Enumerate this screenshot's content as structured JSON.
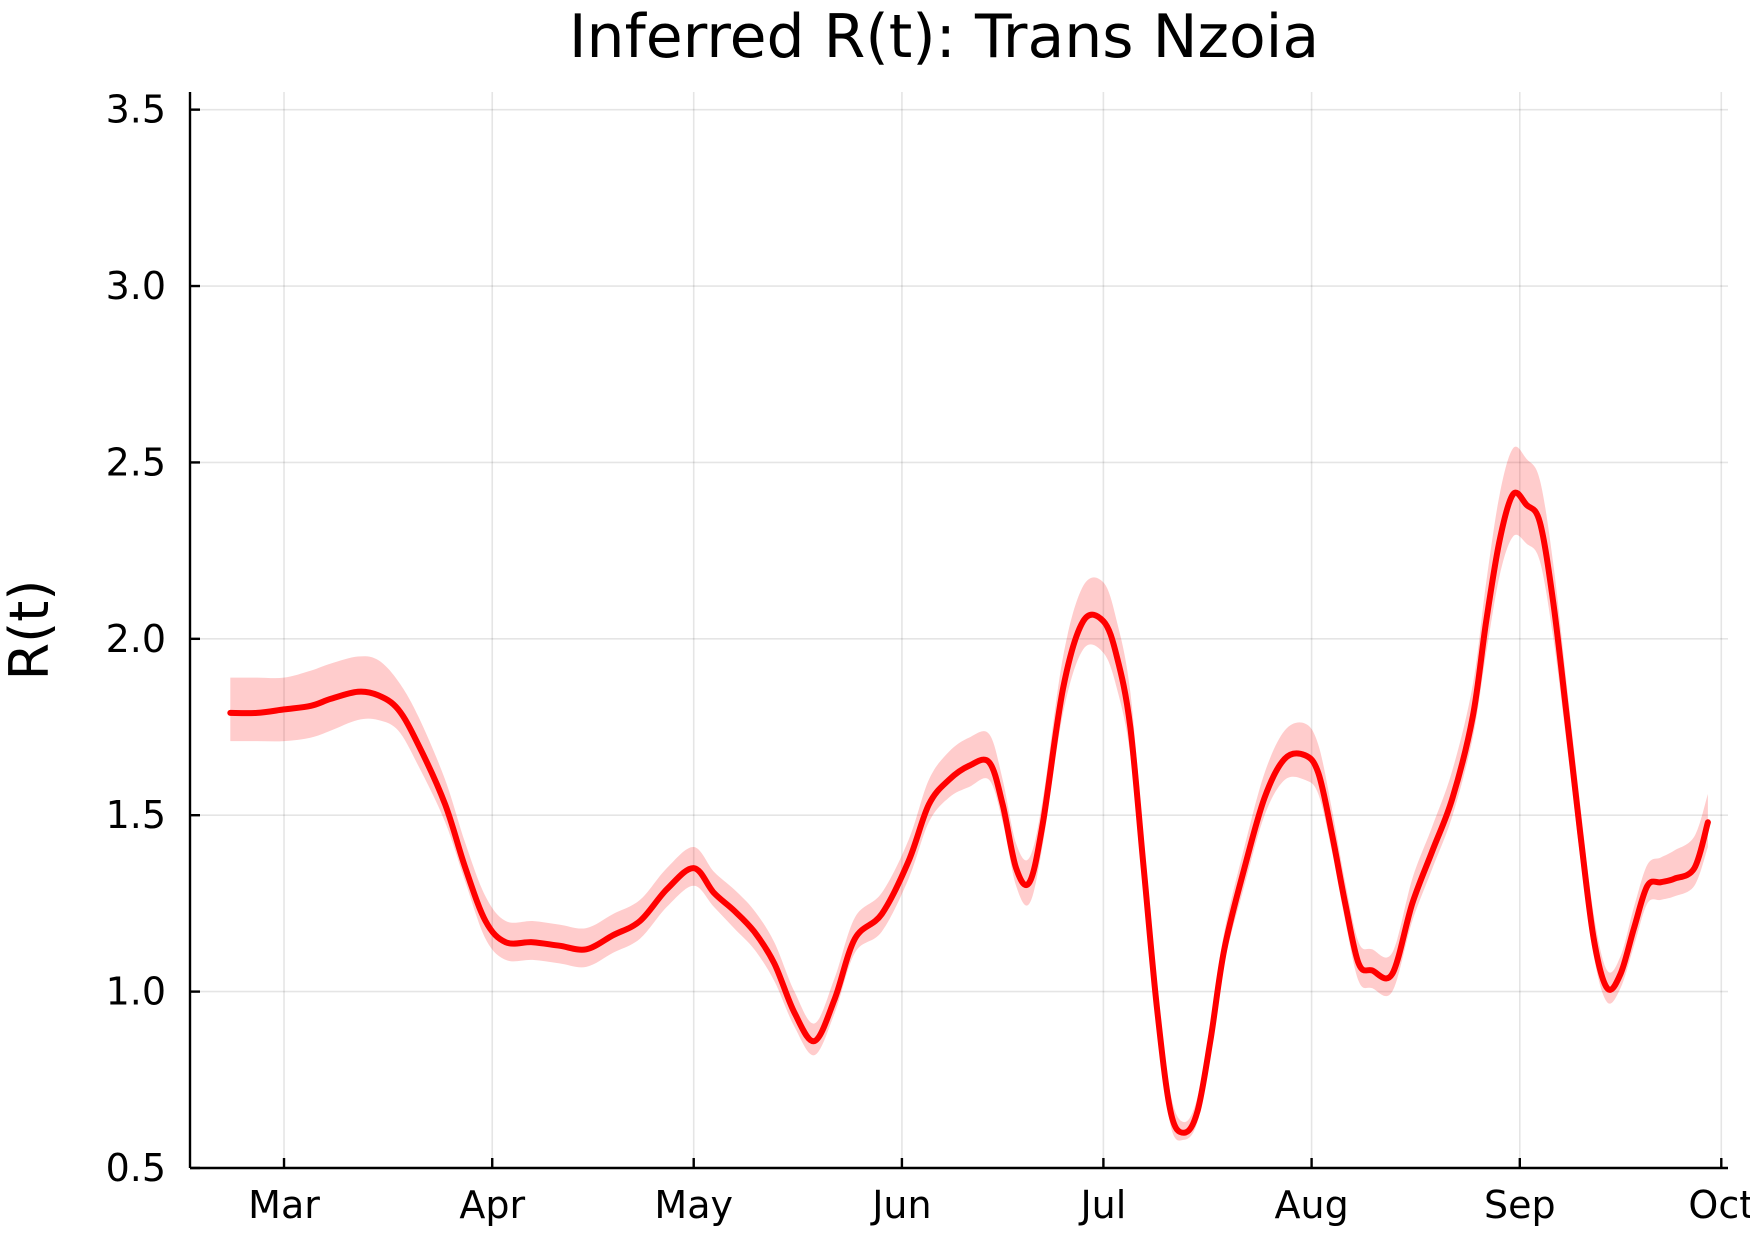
{
  "chart_data": {
    "type": "line",
    "title": "Inferred R(t): Trans Nzoia",
    "xlabel": "",
    "ylabel": "R(t)",
    "ylim": [
      0.5,
      3.55
    ],
    "yticks": [
      "0.5",
      "1.0",
      "1.5",
      "2.0",
      "2.5",
      "3.0",
      "3.5"
    ],
    "xlim": [
      "2020-02-16",
      "2020-10-02"
    ],
    "xticks": [
      {
        "date": "2020-03-01",
        "label": "Mar"
      },
      {
        "date": "2020-04-01",
        "label": "Apr"
      },
      {
        "date": "2020-05-01",
        "label": "May"
      },
      {
        "date": "2020-06-01",
        "label": "Jun"
      },
      {
        "date": "2020-07-01",
        "label": "Jul"
      },
      {
        "date": "2020-08-01",
        "label": "Aug"
      },
      {
        "date": "2020-09-01",
        "label": "Sep"
      },
      {
        "date": "2020-10-01",
        "label": "Oct"
      }
    ],
    "grid": true,
    "legend": "none",
    "colors": {
      "line": "#ff0000",
      "band": "#ff0000"
    },
    "series": [
      {
        "x": [
          "2020-02-22",
          "2020-02-26",
          "2020-03-01",
          "2020-03-05",
          "2020-03-08",
          "2020-03-12",
          "2020-03-15",
          "2020-03-18",
          "2020-03-21",
          "2020-03-25",
          "2020-03-28",
          "2020-03-31",
          "2020-04-03",
          "2020-04-07",
          "2020-04-11",
          "2020-04-15",
          "2020-04-19",
          "2020-04-23",
          "2020-04-27",
          "2020-05-01",
          "2020-05-04",
          "2020-05-07",
          "2020-05-10",
          "2020-05-13",
          "2020-05-16",
          "2020-05-19",
          "2020-05-22",
          "2020-05-25",
          "2020-05-29",
          "2020-06-02",
          "2020-06-05",
          "2020-06-08",
          "2020-06-11",
          "2020-06-14",
          "2020-06-16",
          "2020-06-18",
          "2020-06-20",
          "2020-06-22",
          "2020-06-25",
          "2020-06-28",
          "2020-07-01",
          "2020-07-03",
          "2020-07-05",
          "2020-07-07",
          "2020-07-09",
          "2020-07-11",
          "2020-07-13",
          "2020-07-15",
          "2020-07-17",
          "2020-07-19",
          "2020-07-22",
          "2020-07-25",
          "2020-07-28",
          "2020-07-31",
          "2020-08-02",
          "2020-08-04",
          "2020-08-06",
          "2020-08-08",
          "2020-08-10",
          "2020-08-13",
          "2020-08-16",
          "2020-08-19",
          "2020-08-22",
          "2020-08-25",
          "2020-08-27",
          "2020-08-29",
          "2020-08-31",
          "2020-09-02",
          "2020-09-04",
          "2020-09-06",
          "2020-09-08",
          "2020-09-10",
          "2020-09-12",
          "2020-09-14",
          "2020-09-16",
          "2020-09-18",
          "2020-09-20",
          "2020-09-22",
          "2020-09-24",
          "2020-09-27",
          "2020-09-29"
        ],
        "y": [
          1.79,
          1.79,
          1.8,
          1.81,
          1.83,
          1.85,
          1.84,
          1.8,
          1.7,
          1.53,
          1.35,
          1.2,
          1.14,
          1.14,
          1.13,
          1.12,
          1.16,
          1.2,
          1.29,
          1.35,
          1.28,
          1.23,
          1.17,
          1.08,
          0.94,
          0.86,
          0.98,
          1.15,
          1.22,
          1.37,
          1.53,
          1.6,
          1.64,
          1.65,
          1.53,
          1.35,
          1.31,
          1.48,
          1.86,
          2.05,
          2.05,
          1.95,
          1.75,
          1.35,
          0.95,
          0.66,
          0.6,
          0.66,
          0.87,
          1.12,
          1.35,
          1.55,
          1.66,
          1.67,
          1.62,
          1.45,
          1.25,
          1.08,
          1.06,
          1.05,
          1.25,
          1.4,
          1.55,
          1.78,
          2.05,
          2.28,
          2.41,
          2.38,
          2.33,
          2.1,
          1.78,
          1.45,
          1.15,
          1.01,
          1.05,
          1.18,
          1.3,
          1.31,
          1.32,
          1.35,
          1.48
        ],
        "lower": [
          1.71,
          1.71,
          1.71,
          1.72,
          1.74,
          1.77,
          1.77,
          1.74,
          1.64,
          1.48,
          1.31,
          1.15,
          1.09,
          1.09,
          1.08,
          1.07,
          1.11,
          1.15,
          1.24,
          1.3,
          1.24,
          1.18,
          1.12,
          1.03,
          0.9,
          0.82,
          0.94,
          1.11,
          1.17,
          1.32,
          1.48,
          1.55,
          1.58,
          1.6,
          1.48,
          1.3,
          1.25,
          1.42,
          1.79,
          1.97,
          1.96,
          1.86,
          1.67,
          1.29,
          0.9,
          0.62,
          0.58,
          0.63,
          0.83,
          1.08,
          1.3,
          1.5,
          1.6,
          1.6,
          1.56,
          1.4,
          1.2,
          1.03,
          1.01,
          1.0,
          1.2,
          1.35,
          1.5,
          1.72,
          1.96,
          2.18,
          2.29,
          2.27,
          2.22,
          2.0,
          1.7,
          1.38,
          1.1,
          0.97,
          1.01,
          1.13,
          1.25,
          1.26,
          1.27,
          1.3,
          1.41
        ],
        "upper": [
          1.89,
          1.89,
          1.89,
          1.91,
          1.93,
          1.95,
          1.94,
          1.88,
          1.78,
          1.6,
          1.42,
          1.27,
          1.2,
          1.2,
          1.19,
          1.18,
          1.22,
          1.26,
          1.35,
          1.41,
          1.34,
          1.29,
          1.23,
          1.14,
          1.0,
          0.91,
          1.04,
          1.21,
          1.28,
          1.43,
          1.6,
          1.68,
          1.72,
          1.73,
          1.6,
          1.42,
          1.38,
          1.55,
          1.95,
          2.15,
          2.16,
          2.05,
          1.85,
          1.43,
          1.01,
          0.71,
          0.63,
          0.7,
          0.92,
          1.17,
          1.41,
          1.62,
          1.74,
          1.76,
          1.7,
          1.52,
          1.31,
          1.14,
          1.12,
          1.11,
          1.32,
          1.47,
          1.63,
          1.87,
          2.16,
          2.41,
          2.54,
          2.51,
          2.45,
          2.21,
          1.87,
          1.53,
          1.22,
          1.06,
          1.1,
          1.24,
          1.36,
          1.38,
          1.4,
          1.44,
          1.56
        ]
      }
    ]
  }
}
